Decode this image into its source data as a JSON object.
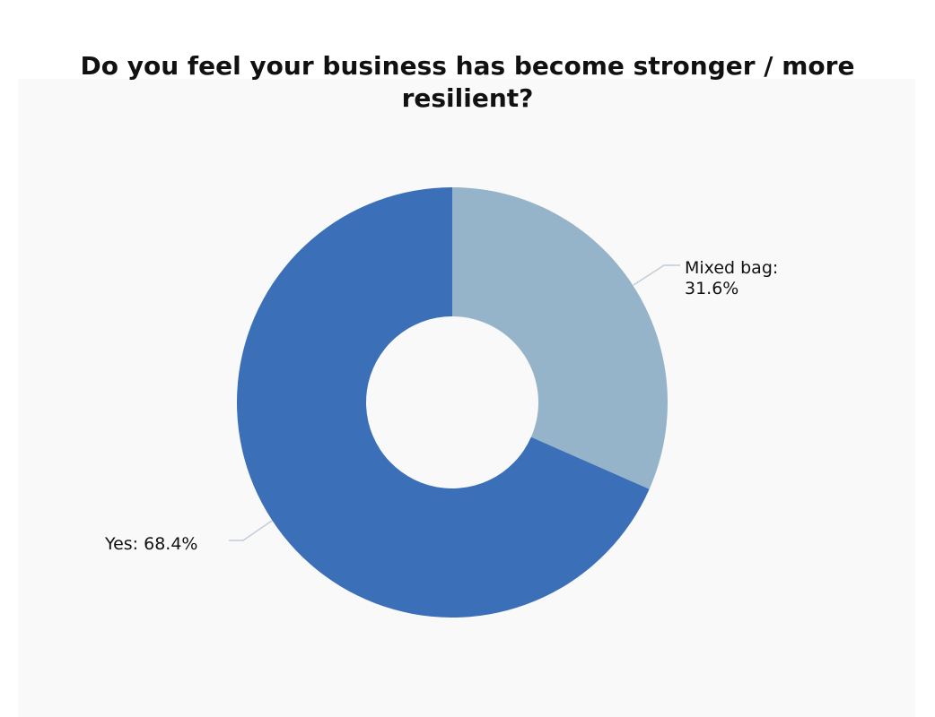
{
  "chart_data": {
    "type": "pie",
    "subtype": "donut",
    "title": "Do you feel your business has become stronger / more resilient?",
    "categories": [
      "Mixed bag",
      "Yes"
    ],
    "values": [
      31.6,
      68.4
    ],
    "unit": "%",
    "colors": [
      "#96b4c9",
      "#3b70b9"
    ],
    "labels": [
      "Mixed bag: 31.6%",
      "Yes: 68.4%"
    ],
    "start_angle_deg": 0,
    "direction": "clockwise",
    "legend": "none",
    "background": "#f9f9f9"
  },
  "title": {
    "line1": "Do you feel your business has become stronger / more",
    "line2": "resilient?"
  },
  "labels": {
    "mixed_line1": "Mixed bag:",
    "mixed_line2": "31.6%",
    "yes": "Yes: 68.4%"
  }
}
